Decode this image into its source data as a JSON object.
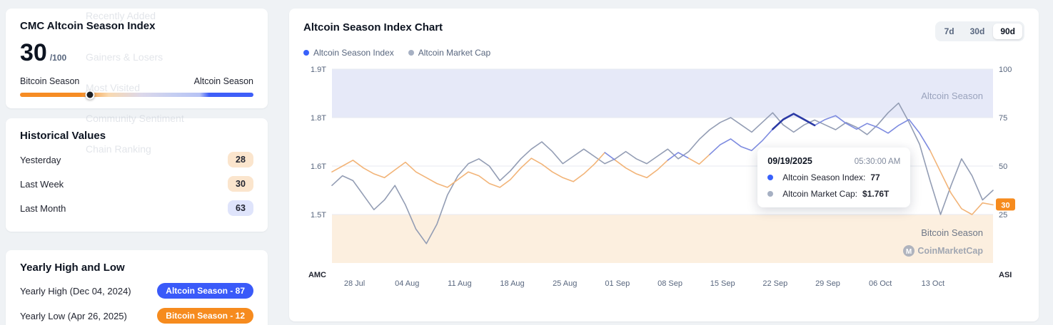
{
  "faint_menu": {
    "items": [
      "Recently Added",
      "Gainers & Losers",
      "Most Visited",
      "Community Sentiment",
      "Chain Ranking"
    ]
  },
  "index_card": {
    "title": "CMC Altcoin Season Index",
    "score": "30",
    "score_max": "/100",
    "left_label": "Bitcoin Season",
    "right_label": "Altcoin Season",
    "marker_percent": 30
  },
  "historical_card": {
    "title": "Historical Values",
    "rows": [
      {
        "label": "Yesterday",
        "value": "28",
        "badge": "orange"
      },
      {
        "label": "Last Week",
        "value": "30",
        "badge": "orange"
      },
      {
        "label": "Last Month",
        "value": "63",
        "badge": "blue"
      }
    ]
  },
  "yearly_card": {
    "title": "Yearly High and Low",
    "rows": [
      {
        "label": "Yearly High",
        "date": "(Dec 04, 2024)",
        "badge_label": "Altcoin Season - 87",
        "badge": "blue"
      },
      {
        "label": "Yearly Low",
        "date": "(Apr 26, 2025)",
        "badge_label": "Bitcoin Season - 12",
        "badge": "orange"
      }
    ]
  },
  "chart_card": {
    "title": "Altcoin Season Index Chart",
    "range_buttons": [
      {
        "label": "7d",
        "active": false
      },
      {
        "label": "30d",
        "active": false
      },
      {
        "label": "90d",
        "active": true
      }
    ],
    "legend": [
      {
        "label": "Altcoin Season Index",
        "color": "#3861fb"
      },
      {
        "label": "Altcoin Market Cap",
        "color": "#a6b0c3"
      }
    ],
    "left_axis_label": "AMC",
    "right_axis_label": "ASI",
    "current_value": "30",
    "band_labels": {
      "top": "Altcoin Season",
      "bottom": "Bitcoin Season"
    },
    "watermark": "CoinMarketCap",
    "tooltip": {
      "date": "09/19/2025",
      "time": "05:30:00 AM",
      "rows": [
        {
          "label": "Altcoin Season Index:",
          "value": "77",
          "color": "#3861fb"
        },
        {
          "label": "Altcoin Market Cap:",
          "value": "$1.76T",
          "color": "#a6b0c3"
        }
      ]
    }
  },
  "chart_data": {
    "type": "line",
    "title": "Altcoin Season Index Chart",
    "x_labels": [
      "28 Jul",
      "04 Aug",
      "11 Aug",
      "18 Aug",
      "25 Aug",
      "01 Sep",
      "08 Sep",
      "15 Sep",
      "22 Sep",
      "29 Sep",
      "06 Oct",
      "13 Oct"
    ],
    "left_axis_ticks": [
      "1.9T",
      "1.8T",
      "1.6T",
      "1.5T"
    ],
    "right_axis_ticks": [
      100,
      75,
      50,
      25
    ],
    "bands": {
      "altcoin_season": [
        75,
        100
      ],
      "bitcoin_season": [
        0,
        25
      ]
    },
    "color_threshold": 55,
    "colors": {
      "asi_high": "#7d8be0",
      "asi_low": "#f2b478",
      "asi_highlight": "#2b3aa5",
      "amc": "#939db4",
      "band_top": "#e6e9f8",
      "band_bottom": "#fcefdf",
      "grid": "#e7eaf1"
    },
    "highlight": {
      "start": 42,
      "end": 46
    },
    "series": [
      {
        "name": "Altcoin Season Index",
        "values": [
          47,
          50,
          53,
          49,
          46,
          44,
          48,
          52,
          47,
          44,
          41,
          39,
          43,
          47,
          45,
          41,
          39,
          43,
          49,
          54,
          51,
          47,
          44,
          42,
          46,
          51,
          57,
          53,
          49,
          46,
          44,
          48,
          53,
          57,
          54,
          51,
          56,
          61,
          64,
          60,
          58,
          63,
          69,
          74,
          77,
          74,
          71,
          74,
          76,
          72,
          69,
          72,
          70,
          67,
          71,
          74,
          67,
          58,
          47,
          36,
          28,
          25,
          31,
          30
        ]
      },
      {
        "name": "Altcoin Market Cap (T)",
        "values": [
          1.56,
          1.58,
          1.57,
          1.54,
          1.51,
          1.53,
          1.56,
          1.52,
          1.47,
          1.44,
          1.48,
          1.54,
          1.58,
          1.61,
          1.63,
          1.6,
          1.57,
          1.59,
          1.63,
          1.67,
          1.7,
          1.66,
          1.61,
          1.64,
          1.67,
          1.64,
          1.61,
          1.63,
          1.66,
          1.63,
          1.61,
          1.64,
          1.67,
          1.63,
          1.66,
          1.71,
          1.75,
          1.78,
          1.8,
          1.77,
          1.74,
          1.78,
          1.81,
          1.77,
          1.74,
          1.77,
          1.79,
          1.77,
          1.75,
          1.78,
          1.76,
          1.73,
          1.77,
          1.81,
          1.83,
          1.78,
          1.69,
          1.57,
          1.5,
          1.56,
          1.63,
          1.58,
          1.53,
          1.55
        ]
      }
    ]
  }
}
